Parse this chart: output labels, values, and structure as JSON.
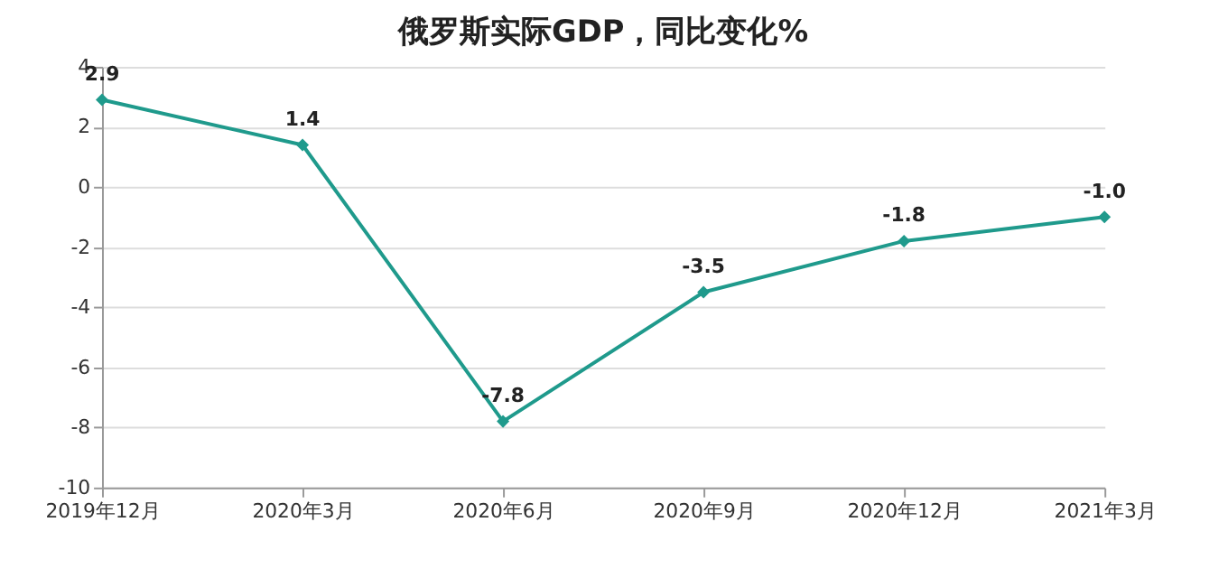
{
  "chart_data": {
    "type": "line",
    "title": "俄罗斯实际GDP，同比变化%",
    "categories": [
      "2019年12月",
      "2020年3月",
      "2020年6月",
      "2020年9月",
      "2020年12月",
      "2021年3月"
    ],
    "series": [
      {
        "color": "#1f9a8c",
        "values": [
          2.9,
          1.4,
          -7.8,
          -3.5,
          -1.8,
          -1.0
        ],
        "value_labels": [
          "2.9",
          "1.4",
          "-7.8",
          "-3.5",
          "-1.8",
          "-1.0"
        ]
      }
    ],
    "ylim": [
      -10,
      4
    ],
    "yticks": [
      -10,
      -8,
      -6,
      -4,
      -2,
      0,
      2,
      4
    ],
    "grid": "y",
    "marker": "diamond",
    "line_style": "solid",
    "legend": false
  }
}
